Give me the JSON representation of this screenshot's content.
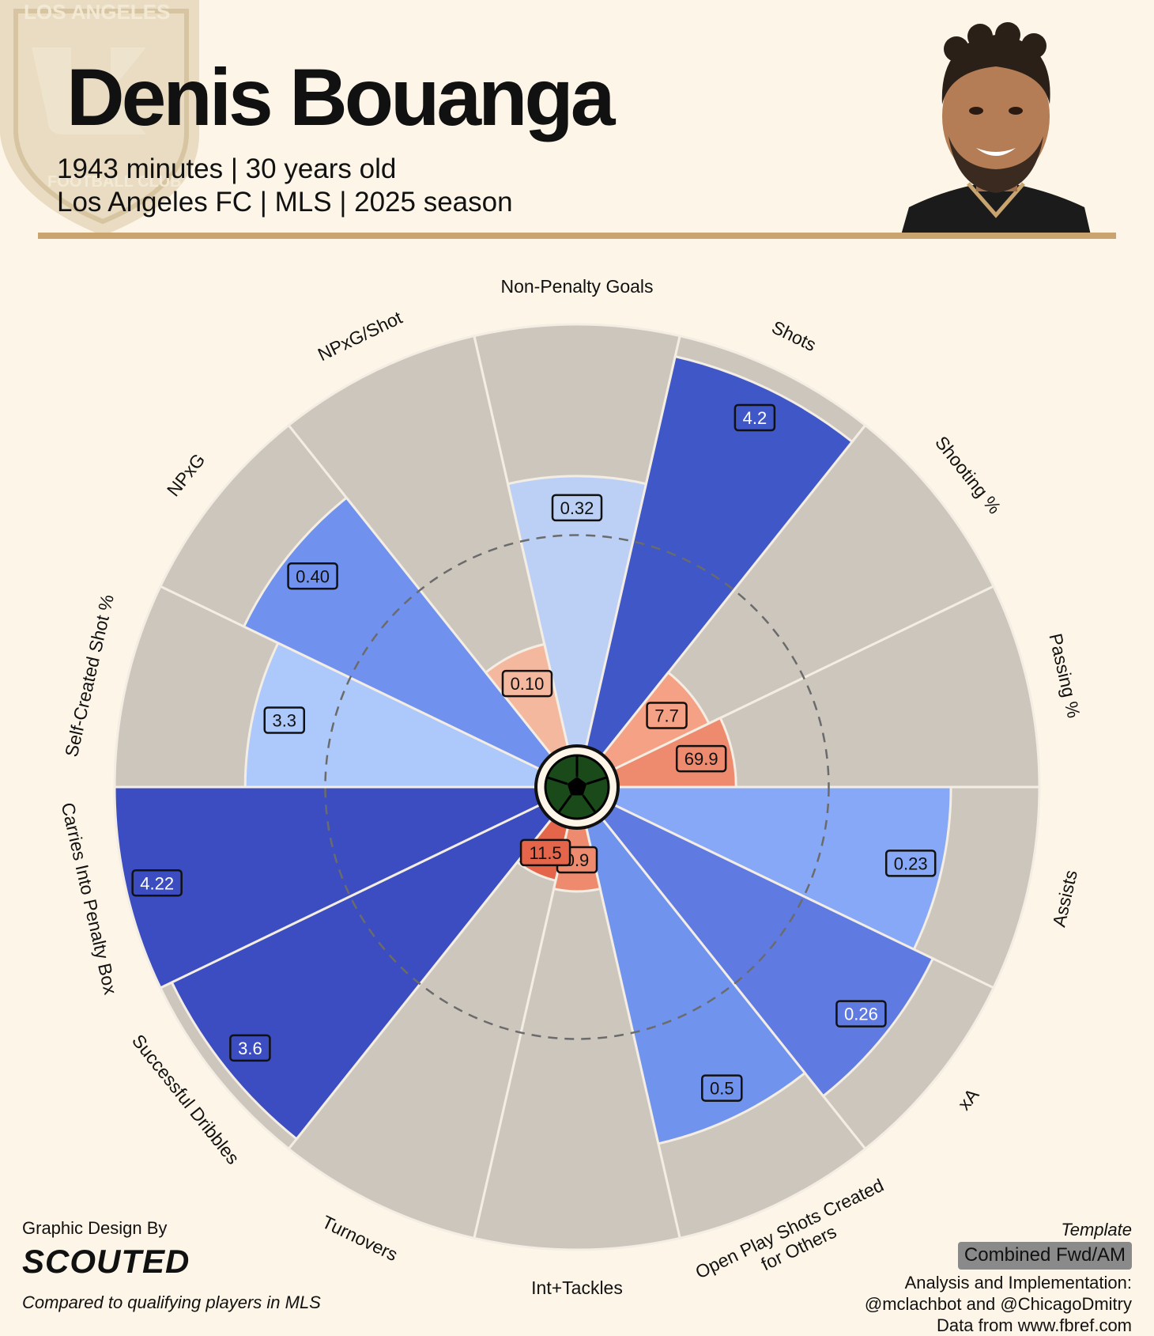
{
  "header": {
    "player_name": "Denis Bouanga",
    "subtitle_line1": "1943 minutes | 30 years old",
    "subtitle_line2": "Los Angeles FC | MLS | 2025 season",
    "crest_text_top": "LOS ANGELES",
    "crest_text_bottom": "FOOTBALL CLUB"
  },
  "colors": {
    "background": "#fdf6e8",
    "slice_background": "#ccc6bd",
    "accent_rule": "#c9a46e",
    "attacking_low": "#b7cdf5",
    "attacking_high": "#3f4fc4",
    "defending": "#f08a6c"
  },
  "chart_data": {
    "type": "pizza",
    "title": "",
    "ylim": [
      0,
      100
    ],
    "reference_circle_percentile": 50,
    "categories": [
      "Non-Penalty Goals",
      "Shots",
      "Shooting %",
      "Passing %",
      "Assists",
      "xA",
      "Open Play Shots Created for Others",
      "Int+Tackles",
      "Turnovers",
      "Successful Dribbles",
      "Carries Into Penalty Box",
      "Self-Created Shot %",
      "NPxG",
      "NPxG/Shot"
    ],
    "values": [
      "0.32",
      "4.2",
      "7.7",
      "69.9",
      "0.23",
      "0.26",
      "0.5",
      "0.9",
      "11.5",
      "3.6",
      "4.22",
      "3.3",
      "0.40",
      "0.10"
    ],
    "percentiles": [
      64,
      95,
      25,
      28,
      79,
      84,
      77,
      15,
      13,
      97,
      100,
      69,
      78,
      25
    ],
    "fill_colors": [
      "#bcd0f6",
      "#4057c8",
      "#f5a185",
      "#ee8a6d",
      "#86a8f7",
      "#5f7be2",
      "#7093ee",
      "#ee8a6d",
      "#e4654a",
      "#3b4dc0",
      "#3b4dc0",
      "#adc8fb",
      "#7092ee",
      "#f4b89f"
    ]
  },
  "footer": {
    "design_label": "Graphic Design By",
    "brand": "SCOUTED",
    "compared_note": "Compared to qualifying players in MLS",
    "template_label": "Template",
    "template_value": "Combined Fwd/AM",
    "analysis_label": "Analysis and Implementation:",
    "handles": "@mclachbot and @ChicagoDmitry",
    "source": "Data from www.fbref.com"
  }
}
